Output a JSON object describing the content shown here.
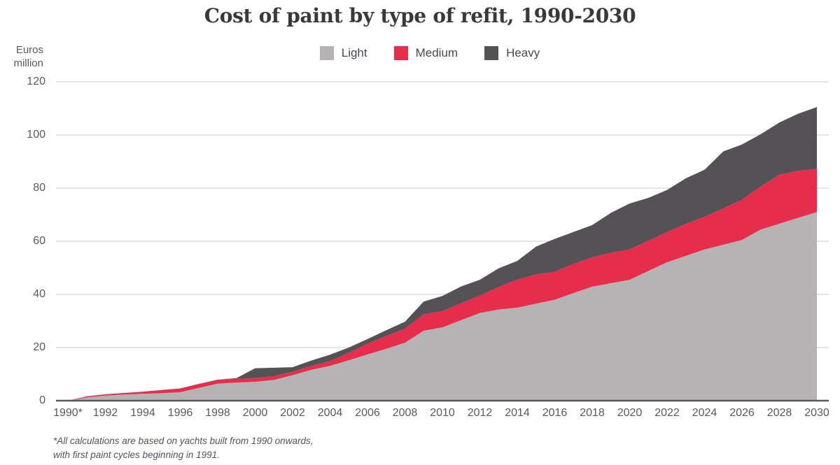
{
  "title": "Cost of paint by type of refit, 1990-2030",
  "y_axis_unit_line1": "Euros",
  "y_axis_unit_line2": "million",
  "footnote_line1": "*All calculations are based on yachts built from 1990 onwards,",
  "footnote_line2": "with first paint cycles beginning in 1991.",
  "colors": {
    "light": "#b5b3b4",
    "medium": "#e62e4c",
    "heavy": "#555255",
    "grid": "#cccbcd",
    "axis": "#5a575c",
    "tick_text": "#5b585c",
    "title_text": "#3b383b"
  },
  "chart_data": {
    "type": "area",
    "stacked": true,
    "title": "Cost of paint by type of refit, 1990-2030",
    "ylabel": "Euros million",
    "xlabel": "",
    "grid": true,
    "legend_position": "top",
    "ylim": [
      0,
      120
    ],
    "y_ticks": [
      0,
      20,
      40,
      60,
      80,
      100,
      120
    ],
    "x": [
      1990,
      1991,
      1992,
      1993,
      1994,
      1995,
      1996,
      1997,
      1998,
      1999,
      2000,
      2001,
      2002,
      2003,
      2004,
      2005,
      2006,
      2007,
      2008,
      2009,
      2010,
      2011,
      2012,
      2013,
      2014,
      2015,
      2016,
      2017,
      2018,
      2019,
      2020,
      2021,
      2022,
      2023,
      2024,
      2025,
      2026,
      2027,
      2028,
      2029,
      2030
    ],
    "x_tick_labels": [
      "1990*",
      "1992",
      "1994",
      "1996",
      "1998",
      "2000",
      "2002",
      "2004",
      "2006",
      "2008",
      "2010",
      "2012",
      "2014",
      "2016",
      "2018",
      "2020",
      "2022",
      "2024",
      "2026",
      "2028",
      "2030"
    ],
    "series": [
      {
        "name": "Light",
        "color": "#b5b3b4",
        "values": [
          0,
          1.2,
          1.9,
          2.3,
          2.6,
          2.8,
          3.2,
          4.8,
          6.4,
          6.8,
          7.1,
          7.8,
          9.6,
          11.6,
          13.1,
          15.2,
          17.4,
          19.5,
          21.8,
          26.3,
          27.6,
          30.3,
          33.0,
          34.3,
          35.0,
          36.5,
          38.0,
          40.5,
          42.9,
          44.2,
          45.5,
          48.8,
          52.1,
          54.5,
          56.9,
          58.7,
          60.5,
          64.4,
          66.6,
          68.8,
          71.0
        ]
      },
      {
        "name": "Medium",
        "color": "#e62e4c",
        "values": [
          0,
          0.4,
          0.5,
          0.6,
          0.8,
          1.2,
          1.4,
          1.5,
          1.5,
          1.4,
          1.4,
          1.4,
          1.3,
          1.5,
          1.8,
          2.8,
          4.0,
          4.8,
          5.3,
          6.2,
          6.1,
          6.4,
          6.5,
          8.5,
          10.5,
          11.0,
          10.5,
          11.0,
          11.0,
          11.5,
          11.4,
          11.4,
          11.4,
          12.0,
          12.3,
          13.6,
          15.2,
          16.2,
          18.4,
          17.7,
          16.2
        ]
      },
      {
        "name": "Heavy",
        "color": "#555255",
        "values": [
          0,
          0,
          0,
          0,
          0,
          0,
          0,
          0,
          0,
          0.3,
          3.7,
          3.2,
          1.7,
          2.0,
          2.4,
          2.0,
          1.8,
          2.2,
          2.6,
          4.8,
          5.7,
          6.3,
          6.0,
          7.0,
          7.1,
          10.5,
          12.4,
          12.0,
          12.2,
          15.0,
          17.3,
          16.1,
          15.8,
          17.2,
          17.7,
          21.5,
          20.7,
          19.7,
          19.7,
          21.5,
          23.3
        ]
      }
    ]
  }
}
